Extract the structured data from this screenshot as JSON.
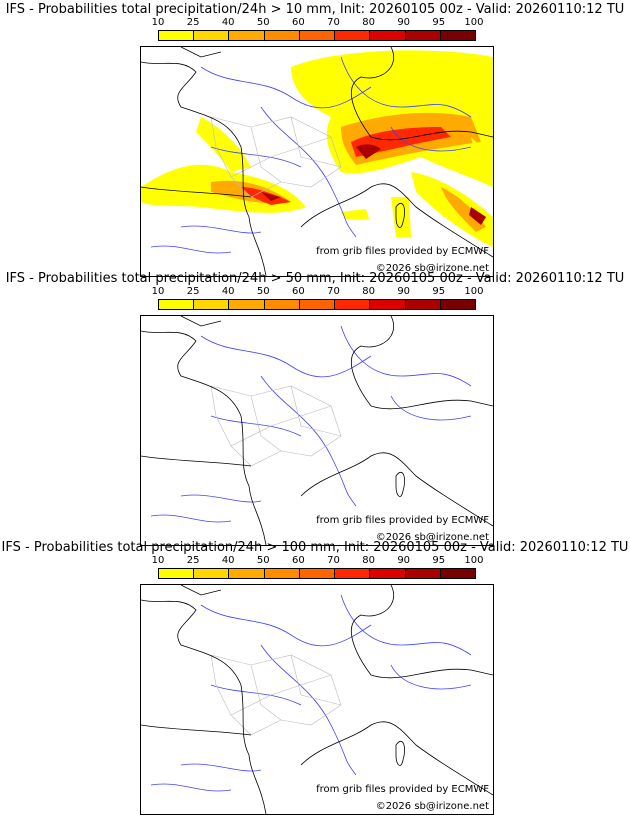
{
  "colorbar": {
    "ticks": [
      "10",
      "25",
      "40",
      "50",
      "60",
      "70",
      "80",
      "90",
      "95",
      "100"
    ],
    "colors": [
      "#ffff00",
      "#ffd700",
      "#ffaa00",
      "#ff8c00",
      "#ff6400",
      "#ff2800",
      "#dc0000",
      "#aa0000",
      "#780000"
    ]
  },
  "panels": [
    {
      "title": "IFS - Probabilities total precipitation/24h > 10 mm, Init: 20260105 00z - Valid: 20260110:12 TU",
      "credit_source": "from grib files provided by ECMWF",
      "credit_copy": "©2026 sb@irizone.net"
    },
    {
      "title": "IFS - Probabilities total precipitation/24h > 50 mm, Init: 20260105 00z - Valid: 20260110:12 TU",
      "credit_source": "from grib files provided by ECMWF",
      "credit_copy": "©2026 sb@irizone.net"
    },
    {
      "title": "IFS - Probabilities total precipitation/24h > 100 mm, Init: 20260105 00z - Valid: 20260110:12 TU",
      "credit_source": "from grib files provided by ECMWF",
      "credit_copy": "©2026 sb@irizone.net"
    }
  ]
}
